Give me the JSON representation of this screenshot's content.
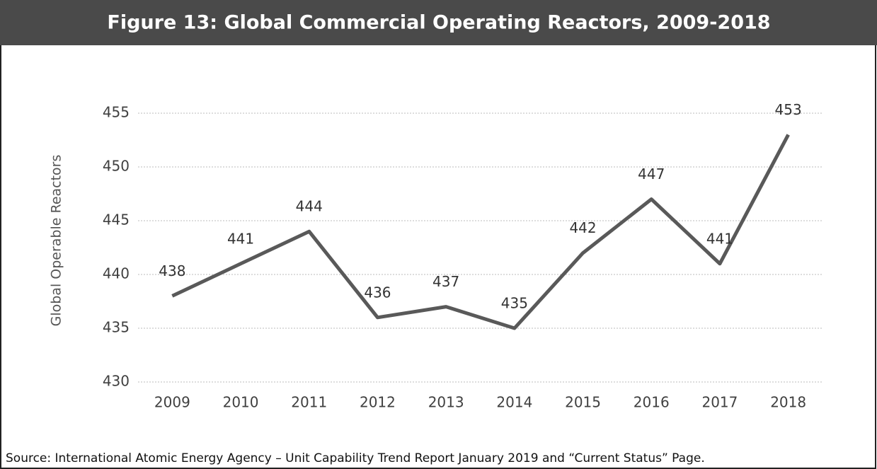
{
  "chart_data": {
    "type": "line",
    "title": "Figure 13:  Global Commercial Operating Reactors, 2009-2018",
    "y_label": "Global Operable Reactors",
    "source": "Source: International Atomic Energy Agency – Unit Capability Trend Report January 2019 and “Current Status” Page.",
    "categories": [
      "2009",
      "2010",
      "2011",
      "2012",
      "2013",
      "2014",
      "2015",
      "2016",
      "2017",
      "2018"
    ],
    "values": [
      438,
      441,
      444,
      436,
      437,
      435,
      442,
      447,
      441,
      453
    ],
    "color": "#595959",
    "ylim": [
      430,
      455
    ],
    "yticks": [
      430,
      435,
      440,
      445,
      450,
      455
    ],
    "grid": true
  }
}
